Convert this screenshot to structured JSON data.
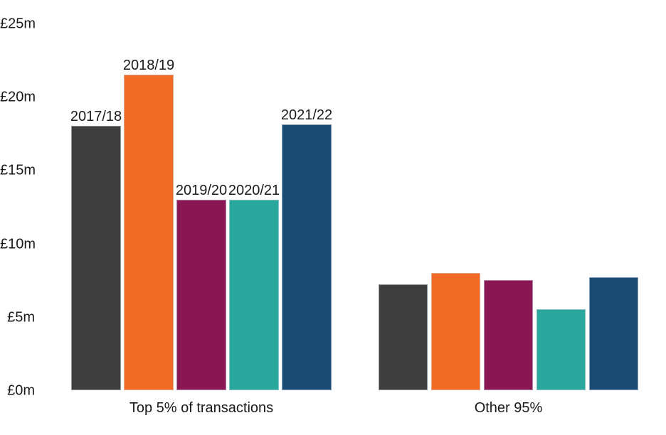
{
  "chart_data": {
    "type": "bar",
    "title": "",
    "xlabel": "",
    "ylabel": "",
    "categories": [
      "Top 5% of transactions",
      "Other 95%"
    ],
    "series": [
      {
        "name": "2017/18",
        "color": "#3d3d3d",
        "values": [
          18.0,
          7.2
        ]
      },
      {
        "name": "2018/19",
        "color": "#f26b24",
        "values": [
          21.5,
          8.0
        ]
      },
      {
        "name": "2019/20",
        "color": "#8a1753",
        "values": [
          13.0,
          7.5
        ]
      },
      {
        "name": "2020/21",
        "color": "#2aa79c",
        "values": [
          13.0,
          5.5
        ]
      },
      {
        "name": "2021/22",
        "color": "#1a4b74",
        "values": [
          18.1,
          7.7
        ]
      }
    ],
    "ylim": [
      0,
      25
    ],
    "ytick_labels": [
      "£0m",
      "£5m",
      "£10m",
      "£15m",
      "£20m",
      "£25m"
    ],
    "grid": false,
    "legend_position": "none",
    "axis_lines": false,
    "bar_label_note": "series year labels shown above bars of first category only",
    "text_color": "#1a1a1a",
    "background_color": "#ffffff"
  }
}
